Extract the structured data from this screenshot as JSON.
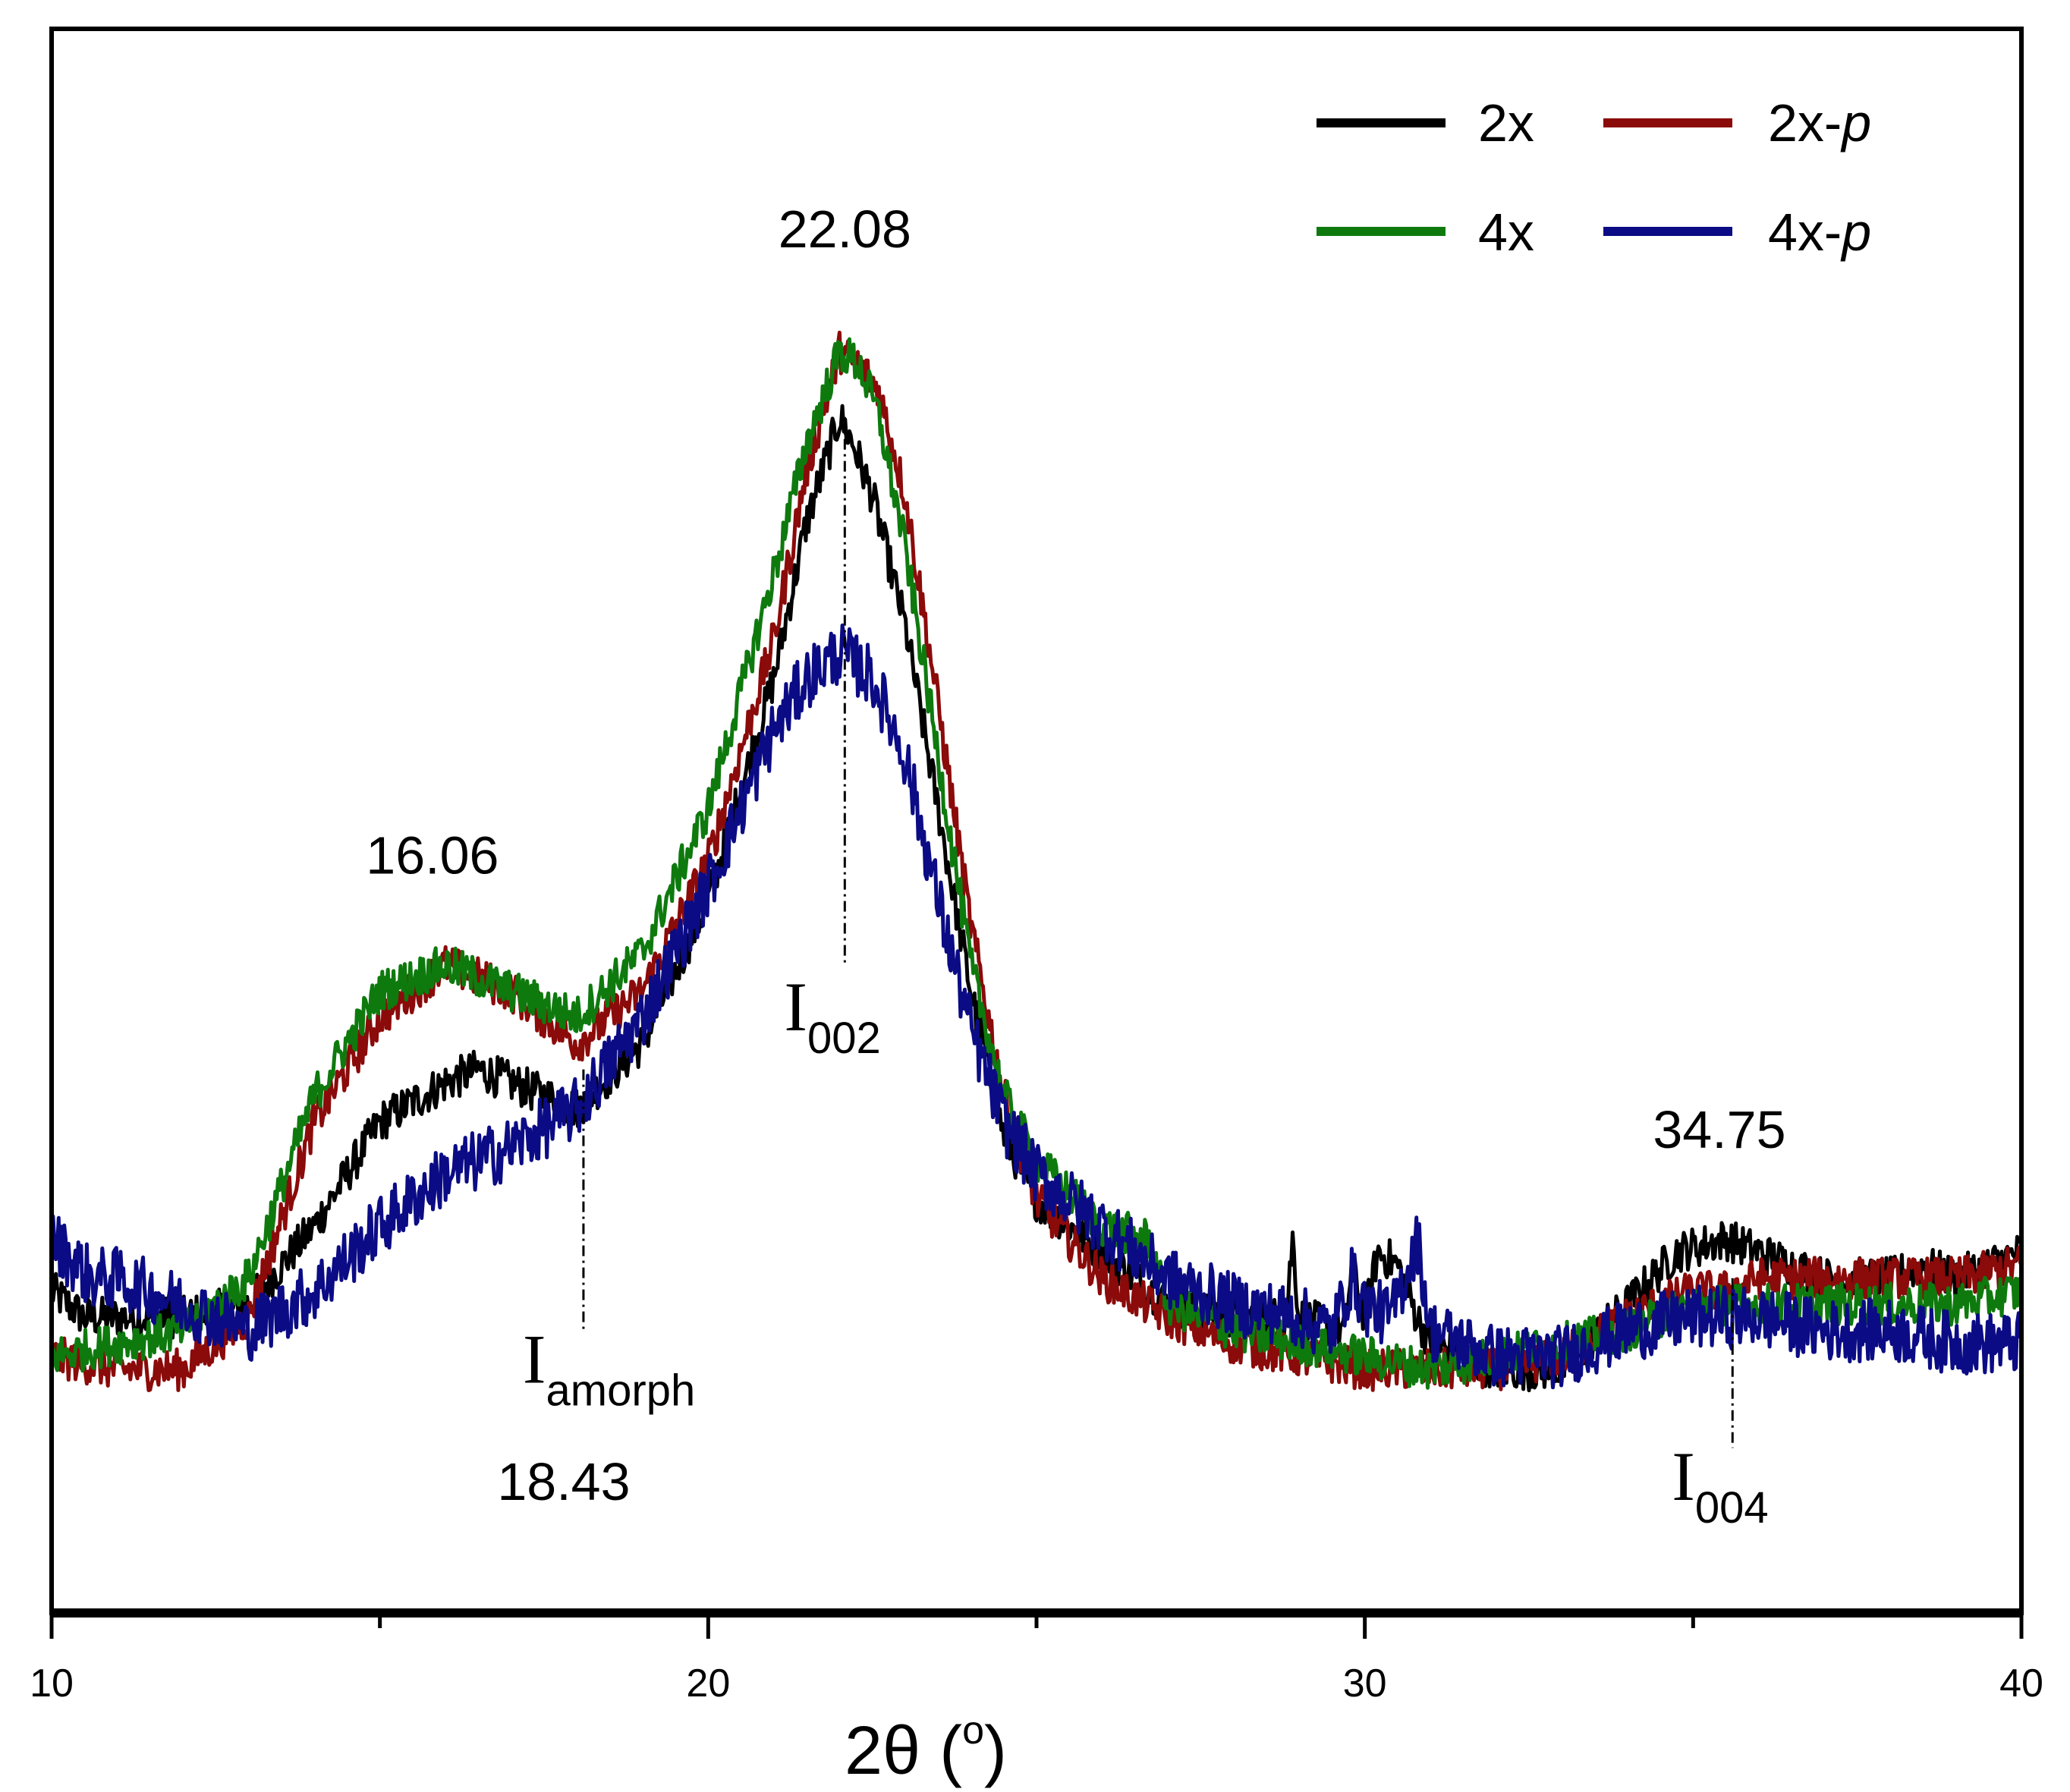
{
  "chart_data": {
    "type": "line",
    "title": "",
    "xlabel": "2θ (°)",
    "xlabel_main": "2θ (",
    "xlabel_unit": "o",
    "xlabel_close": ")",
    "ylabel": "",
    "xlim": [
      10,
      40
    ],
    "ylim": [
      0,
      100
    ],
    "x_ticks": [
      10,
      20,
      30,
      40
    ],
    "x_tick_labels": [
      "10",
      "20",
      "30",
      "40"
    ],
    "grid": false,
    "legend_position": "top-right",
    "series": [
      {
        "name": "2x",
        "label_main": "2x",
        "label_italic": "",
        "color": "#000000",
        "noise": 1.6,
        "points": [
          [
            10,
            15
          ],
          [
            10.5,
            13
          ],
          [
            11,
            13
          ],
          [
            12,
            13
          ],
          [
            13,
            14
          ],
          [
            14,
            20
          ],
          [
            15,
            28
          ],
          [
            16,
            31
          ],
          [
            16.5,
            32
          ],
          [
            17,
            31
          ],
          [
            18,
            29
          ],
          [
            19,
            34
          ],
          [
            20,
            45
          ],
          [
            21,
            62
          ],
          [
            21.5,
            74
          ],
          [
            22,
            82
          ],
          [
            22.2,
            80
          ],
          [
            22.5,
            76
          ],
          [
            23,
            66
          ],
          [
            23.5,
            52
          ],
          [
            24,
            38
          ],
          [
            24.5,
            27
          ],
          [
            25,
            22
          ],
          [
            26,
            18
          ],
          [
            27,
            14
          ],
          [
            28,
            13
          ],
          [
            28.8,
            13
          ],
          [
            28.9,
            19
          ],
          [
            29,
            13
          ],
          [
            29.7,
            12
          ],
          [
            29.8,
            17
          ],
          [
            30,
            13
          ],
          [
            30.2,
            18
          ],
          [
            30.5,
            17
          ],
          [
            30.8,
            13
          ],
          [
            31,
            11
          ],
          [
            32,
            9
          ],
          [
            33,
            9
          ],
          [
            34,
            14
          ],
          [
            34.75,
            18
          ],
          [
            35.5,
            19
          ],
          [
            36.5,
            17
          ],
          [
            37,
            16
          ],
          [
            38,
            16
          ],
          [
            38.5,
            17
          ],
          [
            39,
            16
          ],
          [
            40,
            18
          ]
        ]
      },
      {
        "name": "2x-p",
        "label_main": "2x-",
        "label_italic": "p",
        "color": "#8b0a0a",
        "noise": 1.6,
        "points": [
          [
            10,
            10
          ],
          [
            11,
            9
          ],
          [
            12,
            9
          ],
          [
            13,
            13
          ],
          [
            14,
            28
          ],
          [
            15,
            36
          ],
          [
            16,
            40
          ],
          [
            17,
            38
          ],
          [
            18,
            34
          ],
          [
            19,
            38
          ],
          [
            20,
            48
          ],
          [
            21,
            65
          ],
          [
            21.5,
            78
          ],
          [
            22,
            87
          ],
          [
            22.3,
            86
          ],
          [
            22.6,
            84
          ],
          [
            23,
            76
          ],
          [
            23.5,
            60
          ],
          [
            24,
            43
          ],
          [
            24.5,
            30
          ],
          [
            25,
            22
          ],
          [
            26,
            16
          ],
          [
            27,
            13
          ],
          [
            28,
            11
          ],
          [
            29,
            10
          ],
          [
            30,
            9
          ],
          [
            31,
            9
          ],
          [
            32,
            9
          ],
          [
            33,
            10
          ],
          [
            34,
            13
          ],
          [
            35,
            15
          ],
          [
            35.5,
            15
          ],
          [
            36,
            16
          ],
          [
            37,
            16
          ],
          [
            38,
            16
          ],
          [
            39,
            16
          ],
          [
            40,
            17
          ]
        ]
      },
      {
        "name": "4x",
        "label_main": "4x",
        "label_italic": "",
        "color": "#0e7a0e",
        "noise": 1.6,
        "points": [
          [
            10,
            10
          ],
          [
            11,
            11
          ],
          [
            12,
            12
          ],
          [
            13,
            16
          ],
          [
            14,
            30
          ],
          [
            15,
            38
          ],
          [
            16,
            40
          ],
          [
            17,
            38
          ],
          [
            18,
            36
          ],
          [
            19,
            41
          ],
          [
            20,
            52
          ],
          [
            21,
            70
          ],
          [
            21.5,
            80
          ],
          [
            22,
            87
          ],
          [
            22.3,
            86
          ],
          [
            22.6,
            82
          ],
          [
            23,
            72
          ],
          [
            23.5,
            56
          ],
          [
            24,
            40
          ],
          [
            24.5,
            30
          ],
          [
            25,
            25
          ],
          [
            26,
            20
          ],
          [
            26.7,
            19
          ],
          [
            27,
            14
          ],
          [
            28,
            12
          ],
          [
            29,
            11
          ],
          [
            30,
            10
          ],
          [
            31,
            9
          ],
          [
            32,
            10
          ],
          [
            33,
            11
          ],
          [
            34,
            12
          ],
          [
            35,
            14
          ],
          [
            36,
            14
          ],
          [
            37,
            14
          ],
          [
            38,
            14
          ],
          [
            39,
            14
          ],
          [
            40,
            15
          ]
        ]
      },
      {
        "name": "4x-p",
        "label_main": "4x-",
        "label_italic": "p",
        "color": "#0b0b85",
        "noise": 2.4,
        "points": [
          [
            10,
            19
          ],
          [
            10.6,
            16
          ],
          [
            11,
            16
          ],
          [
            12,
            14
          ],
          [
            13,
            12
          ],
          [
            14,
            15
          ],
          [
            15,
            20
          ],
          [
            16,
            24
          ],
          [
            17,
            26
          ],
          [
            18,
            29
          ],
          [
            19,
            36
          ],
          [
            20,
            46
          ],
          [
            21,
            58
          ],
          [
            21.5,
            62
          ],
          [
            22,
            64
          ],
          [
            22.5,
            62
          ],
          [
            23,
            56
          ],
          [
            23.5,
            45
          ],
          [
            24,
            35
          ],
          [
            24.5,
            28
          ],
          [
            25,
            24
          ],
          [
            26,
            20
          ],
          [
            27,
            16
          ],
          [
            28,
            14
          ],
          [
            29,
            13
          ],
          [
            29.5,
            12
          ],
          [
            29.8,
            16
          ],
          [
            30,
            14
          ],
          [
            30.4,
            13
          ],
          [
            30.8,
            19
          ],
          [
            31,
            12
          ],
          [
            32,
            10
          ],
          [
            33,
            10
          ],
          [
            34,
            12
          ],
          [
            35,
            13
          ],
          [
            36,
            13
          ],
          [
            37,
            12
          ],
          [
            38,
            12
          ],
          [
            39,
            11
          ],
          [
            40,
            11
          ]
        ]
      }
    ],
    "peak_labels": [
      {
        "text": "22.08",
        "x": 22.08,
        "y": 95
      },
      {
        "text": "16.06",
        "x": 15.8,
        "y": 47
      },
      {
        "text": "18.43",
        "x": 17.8,
        "y": -1
      },
      {
        "text": "34.75",
        "x": 35.4,
        "y": 26
      }
    ],
    "intensity_markers": [
      {
        "main": "I",
        "sub": "002",
        "x": 22.08,
        "y_top": 82,
        "y_bottom": 40,
        "label_y": 35
      },
      {
        "main": "I",
        "sub": "amorph",
        "x": 18.1,
        "y_top": 32,
        "y_bottom": 12,
        "label_y": 8
      },
      {
        "main": "I",
        "sub": "004",
        "x": 35.6,
        "y_top": 16,
        "y_bottom": 3,
        "label_y": -1
      }
    ]
  }
}
